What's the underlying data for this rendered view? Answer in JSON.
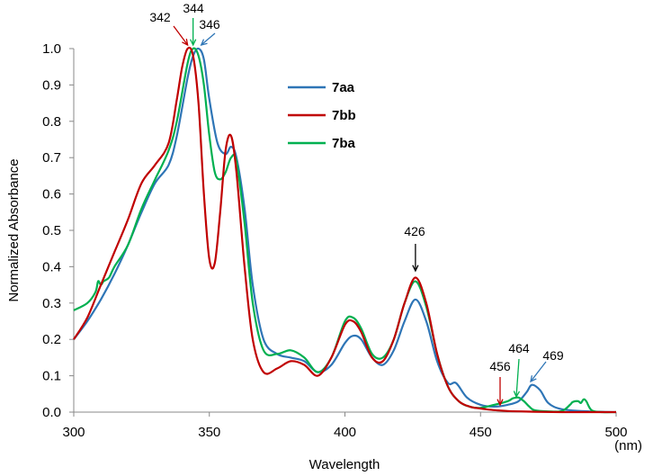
{
  "chart_data": {
    "type": "line",
    "xlabel": "Wavelength",
    "xunit": "(nm)",
    "ylabel": "Normalized Absorbance",
    "xlim": [
      300,
      500
    ],
    "ylim": [
      0,
      1.0
    ],
    "xticks": [
      300,
      350,
      400,
      450,
      500
    ],
    "yticks": [
      0.0,
      0.1,
      0.2,
      0.3,
      0.4,
      0.5,
      0.6,
      0.7,
      0.8,
      0.9,
      1.0
    ],
    "grid": false,
    "legend_position": "upper-middle",
    "series": [
      {
        "name": "7aa",
        "color": "#2e75b6",
        "x": [
          300,
          305,
          310,
          315,
          320,
          325,
          330,
          335,
          338,
          342,
          344,
          346,
          348,
          350,
          353,
          356,
          358,
          360,
          363,
          366,
          370,
          375,
          380,
          385,
          390,
          395,
          400,
          403,
          406,
          410,
          414,
          418,
          422,
          426,
          430,
          434,
          438,
          441,
          445,
          450,
          455,
          460,
          464,
          467,
          469,
          472,
          475,
          480,
          490,
          500
        ],
        "y": [
          0.2,
          0.25,
          0.31,
          0.38,
          0.46,
          0.55,
          0.63,
          0.68,
          0.76,
          0.92,
          0.98,
          1.0,
          0.97,
          0.86,
          0.74,
          0.71,
          0.73,
          0.7,
          0.56,
          0.35,
          0.2,
          0.16,
          0.15,
          0.14,
          0.11,
          0.13,
          0.19,
          0.21,
          0.2,
          0.15,
          0.13,
          0.17,
          0.25,
          0.31,
          0.25,
          0.14,
          0.08,
          0.08,
          0.04,
          0.02,
          0.015,
          0.02,
          0.03,
          0.055,
          0.075,
          0.06,
          0.025,
          0.008,
          0.002,
          0.0
        ]
      },
      {
        "name": "7bb",
        "color": "#c00000",
        "x": [
          300,
          305,
          310,
          315,
          320,
          325,
          330,
          335,
          338,
          340,
          342,
          344,
          346,
          348,
          350,
          352,
          354,
          356,
          358,
          360,
          363,
          366,
          370,
          375,
          380,
          385,
          390,
          395,
          400,
          403,
          406,
          410,
          414,
          418,
          422,
          426,
          430,
          434,
          438,
          442,
          446,
          450,
          453,
          456,
          460,
          465,
          470,
          480,
          490,
          500
        ],
        "y": [
          0.2,
          0.26,
          0.35,
          0.44,
          0.53,
          0.63,
          0.68,
          0.74,
          0.86,
          0.95,
          1.0,
          0.98,
          0.85,
          0.6,
          0.42,
          0.41,
          0.55,
          0.72,
          0.76,
          0.66,
          0.4,
          0.2,
          0.11,
          0.12,
          0.14,
          0.13,
          0.1,
          0.15,
          0.24,
          0.25,
          0.22,
          0.15,
          0.14,
          0.2,
          0.3,
          0.37,
          0.3,
          0.16,
          0.07,
          0.03,
          0.015,
          0.01,
          0.007,
          0.005,
          0.003,
          0.002,
          0.001,
          0.0,
          0.0,
          0.0
        ]
      },
      {
        "name": "7ba",
        "color": "#00b050",
        "x": [
          300,
          305,
          308,
          309,
          310,
          311,
          313,
          315,
          320,
          325,
          330,
          335,
          338,
          342,
          344,
          346,
          348,
          350,
          352,
          354,
          356,
          358,
          360,
          363,
          366,
          370,
          375,
          380,
          385,
          390,
          395,
          400,
          403,
          406,
          410,
          414,
          418,
          422,
          426,
          430,
          434,
          438,
          442,
          446,
          450,
          455,
          460,
          462,
          464,
          466,
          468,
          470,
          475,
          480,
          483,
          484,
          486,
          487,
          488,
          489,
          491,
          495,
          500
        ],
        "y": [
          0.28,
          0.3,
          0.33,
          0.36,
          0.35,
          0.36,
          0.37,
          0.4,
          0.46,
          0.56,
          0.64,
          0.72,
          0.8,
          0.96,
          1.0,
          0.98,
          0.9,
          0.76,
          0.66,
          0.64,
          0.66,
          0.7,
          0.69,
          0.52,
          0.3,
          0.17,
          0.16,
          0.17,
          0.15,
          0.11,
          0.15,
          0.25,
          0.26,
          0.23,
          0.16,
          0.15,
          0.2,
          0.3,
          0.36,
          0.29,
          0.16,
          0.07,
          0.03,
          0.015,
          0.012,
          0.02,
          0.03,
          0.038,
          0.04,
          0.03,
          0.015,
          0.005,
          0.002,
          0.003,
          0.02,
          0.028,
          0.03,
          0.025,
          0.035,
          0.03,
          0.005,
          0.0,
          0.0
        ]
      }
    ],
    "annotations": [
      {
        "label": "342",
        "x": 342,
        "color": "#c00000"
      },
      {
        "label": "344",
        "x": 344,
        "color": "#00b050"
      },
      {
        "label": "346",
        "x": 346,
        "color": "#2e75b6"
      },
      {
        "label": "426",
        "x": 426,
        "color": "#000000"
      },
      {
        "label": "456",
        "x": 456,
        "color": "#c00000"
      },
      {
        "label": "464",
        "x": 464,
        "color": "#00b050"
      },
      {
        "label": "469",
        "x": 469,
        "color": "#2e75b6"
      }
    ]
  }
}
